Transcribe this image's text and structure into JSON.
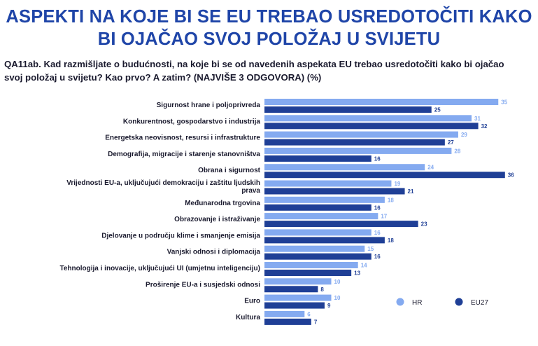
{
  "title": {
    "line1": "ASPEKTI NA KOJE BI SE EU TREBAO USREDOTOČITI KAKO",
    "line2": "BI OJAČAO SVOJ POLOŽAJ U SVIJETU"
  },
  "question": "QA11ab. Kad razmišljate o budućnosti, na koje bi se od navedenih aspekata EU trebao usredotočiti kako bi ojačao svoj položaj u svijetu? Kao prvo? A zatim? (NAJVIŠE 3 ODGOVORA) (%)",
  "chart_data": {
    "type": "bar",
    "orientation": "horizontal",
    "categories": [
      [
        "Sigurnost hrane i poljoprivreda"
      ],
      [
        "Konkurentnost, gospodarstvo i industrija"
      ],
      [
        "Energetska neovisnost, resursi i infrastrukture"
      ],
      [
        "Demografija, migracije i starenje stanovništva"
      ],
      [
        "Obrana i sigurnost"
      ],
      [
        "Vrijednosti EU-a, uključujući demokraciju i zaštitu ljudskih",
        "prava"
      ],
      [
        "Međunarodna trgovina"
      ],
      [
        "Obrazovanje i istraživanje"
      ],
      [
        "Djelovanje u području klime i smanjenje emisija"
      ],
      [
        "Vanjski odnosi i diplomacija"
      ],
      [
        "Tehnologija i inovacije, uključujući UI (umjetnu inteligenciju)"
      ],
      [
        "Proširenje EU-a i susjedski odnosi"
      ],
      [
        "Euro"
      ],
      [
        "Kultura"
      ]
    ],
    "series": [
      {
        "name": "HR",
        "color": "#84aaf0",
        "values": [
          35,
          31,
          29,
          28,
          24,
          19,
          18,
          17,
          16,
          15,
          14,
          10,
          10,
          6
        ]
      },
      {
        "name": "EU27",
        "color": "#1f3f96",
        "values": [
          25,
          32,
          27,
          16,
          36,
          21,
          16,
          23,
          18,
          16,
          13,
          8,
          9,
          7
        ]
      }
    ],
    "xlim": [
      0,
      36
    ],
    "legend": "bottom-right"
  }
}
